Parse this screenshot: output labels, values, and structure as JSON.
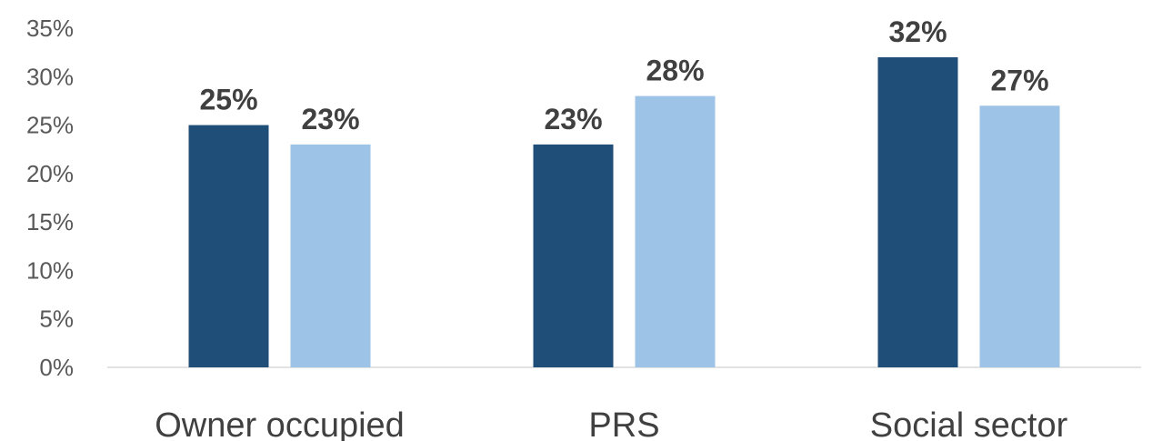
{
  "chart_data": {
    "type": "bar",
    "title": "",
    "xlabel": "",
    "ylabel": "",
    "categories": [
      "Owner occupied",
      "PRS",
      "Social sector"
    ],
    "series": [
      {
        "color": "#1f4e79",
        "values": [
          25,
          23,
          32
        ]
      },
      {
        "color": "#9dc3e6",
        "values": [
          23,
          28,
          27
        ]
      }
    ],
    "data_labels": [
      [
        "25%",
        "23%",
        "32%"
      ],
      [
        "23%",
        "28%",
        "27%"
      ]
    ],
    "yticks": [
      "0%",
      "5%",
      "10%",
      "15%",
      "20%",
      "25%",
      "30%",
      "35%"
    ],
    "ylim": [
      0,
      35
    ],
    "grid": false,
    "legend": "none"
  }
}
